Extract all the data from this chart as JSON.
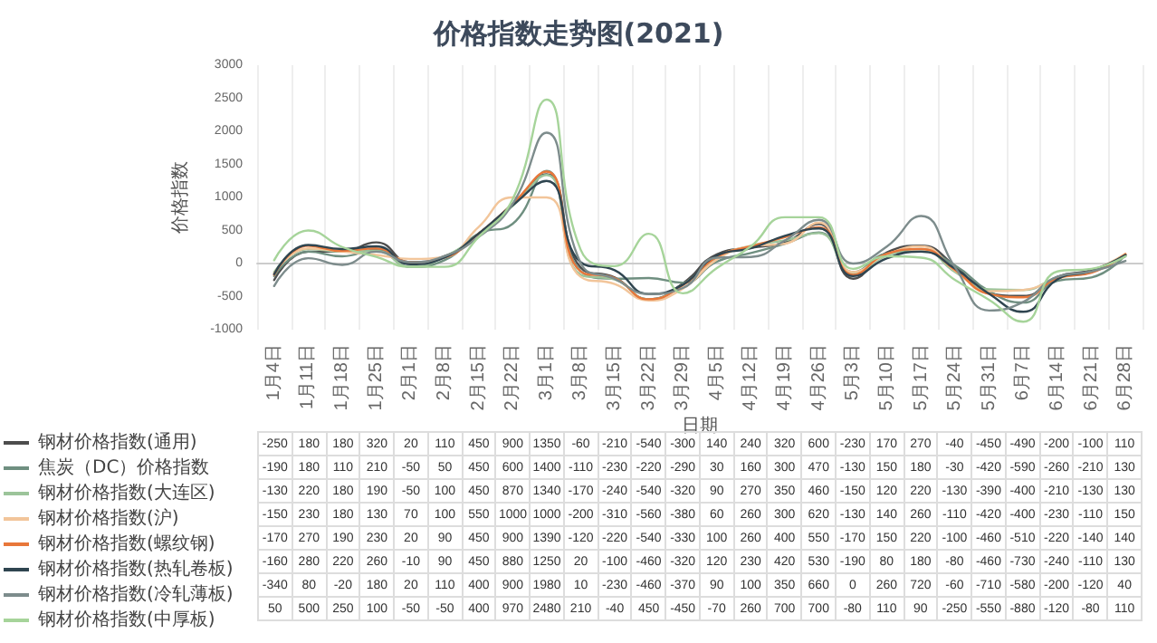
{
  "chart_data": {
    "type": "line",
    "title": "价格指数走势图(2021)",
    "xlabel": "日期",
    "ylabel": "价格指数",
    "categories": [
      "1月4日",
      "1月11日",
      "1月18日",
      "1月25日",
      "2月1日",
      "2月8日",
      "2月15日",
      "2月22日",
      "3月1日",
      "3月8日",
      "3月15日",
      "3月22日",
      "3月29日",
      "4月5日",
      "4月12日",
      "4月19日",
      "4月26日",
      "5月3日",
      "5月10日",
      "5月17日",
      "5月24日",
      "5月31日",
      "6月7日",
      "6月14日",
      "6月21日",
      "6月28日"
    ],
    "ylim": [
      -1000,
      3000
    ],
    "yticks": [
      -1000,
      -500,
      0,
      500,
      1000,
      1500,
      2000,
      2500,
      3000
    ],
    "grid": "x",
    "legend": "bottom left",
    "marker": "none",
    "line_style": "solid",
    "data_labels": true,
    "series": [
      {
        "name": "钢材价格指数(通用)",
        "color": "#4d4d4d",
        "values": [
          -250,
          180,
          180,
          320,
          20,
          110,
          450,
          900,
          1350,
          -60,
          -210,
          -540,
          -300,
          140,
          240,
          320,
          600,
          -230,
          170,
          270,
          -40,
          -450,
          -490,
          -200,
          -100,
          110
        ]
      },
      {
        "name": "焦炭（DC）价格指数",
        "color": "#6f8f80",
        "values": [
          -190,
          180,
          110,
          210,
          -50,
          50,
          450,
          600,
          1400,
          -110,
          -230,
          -220,
          -290,
          30,
          160,
          300,
          470,
          -130,
          150,
          180,
          -30,
          -420,
          -590,
          -260,
          -210,
          130
        ]
      },
      {
        "name": "钢材价格指数(大连区)",
        "color": "#9cc49a",
        "values": [
          -130,
          220,
          180,
          190,
          -50,
          100,
          450,
          870,
          1340,
          -170,
          -240,
          -540,
          -320,
          90,
          270,
          350,
          460,
          -150,
          120,
          220,
          -130,
          -390,
          -400,
          -210,
          -130,
          130
        ]
      },
      {
        "name": "钢材价格指数(沪)",
        "color": "#f2c59a",
        "values": [
          -150,
          230,
          180,
          130,
          70,
          100,
          550,
          1000,
          1000,
          -200,
          -310,
          -560,
          -380,
          60,
          260,
          300,
          620,
          -130,
          140,
          260,
          -110,
          -420,
          -400,
          -230,
          -110,
          150
        ]
      },
      {
        "name": "钢材价格指数(螺纹钢)",
        "color": "#e8773a",
        "values": [
          -170,
          270,
          190,
          230,
          20,
          90,
          450,
          900,
          1390,
          -120,
          -220,
          -540,
          -330,
          100,
          260,
          400,
          550,
          -170,
          150,
          220,
          -100,
          -460,
          -510,
          -220,
          -140,
          140
        ]
      },
      {
        "name": "钢材价格指数(热轧卷板)",
        "color": "#2f4550",
        "values": [
          -160,
          280,
          220,
          260,
          -10,
          90,
          450,
          880,
          1250,
          20,
          -100,
          -460,
          -320,
          120,
          230,
          420,
          530,
          -190,
          80,
          180,
          -80,
          -460,
          -730,
          -240,
          -110,
          130
        ]
      },
      {
        "name": "钢材价格指数(冷轧薄板)",
        "color": "#7d8c8c",
        "values": [
          -340,
          80,
          -20,
          180,
          20,
          110,
          400,
          900,
          1980,
          10,
          -230,
          -460,
          -370,
          90,
          100,
          350,
          660,
          0,
          260,
          720,
          -60,
          -710,
          -580,
          -200,
          -120,
          40
        ]
      },
      {
        "name": "钢材价格指数(中厚板)",
        "color": "#a6d49a",
        "values": [
          50,
          500,
          250,
          100,
          -50,
          -50,
          400,
          970,
          2480,
          210,
          -40,
          450,
          -450,
          -70,
          260,
          700,
          700,
          -80,
          110,
          90,
          -250,
          -550,
          -880,
          -120,
          -80,
          110
        ]
      }
    ]
  }
}
